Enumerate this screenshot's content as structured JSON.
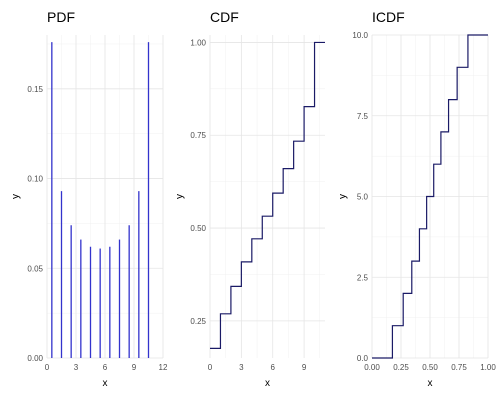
{
  "chart_data": [
    {
      "type": "line",
      "subtype": "spike",
      "title": "PDF",
      "xlabel": "x",
      "ylabel": "y",
      "xlim": [
        0,
        12
      ],
      "ylim": [
        0,
        0.18
      ],
      "xticks": [
        0,
        3,
        6,
        9,
        12
      ],
      "xtick_labels": [
        "0",
        "3",
        "6",
        "9",
        "12"
      ],
      "yticks": [
        0,
        0.05,
        0.1,
        0.15
      ],
      "ytick_labels": [
        "0.00",
        "0.05",
        "0.10",
        "0.15"
      ],
      "grid": true,
      "line_color": "#3333cc",
      "x": [
        0.5,
        1.5,
        2.5,
        3.5,
        4.5,
        5.5,
        6.5,
        7.5,
        8.5,
        9.5,
        10.5
      ],
      "y": [
        0.176,
        0.093,
        0.074,
        0.066,
        0.062,
        0.061,
        0.062,
        0.066,
        0.074,
        0.093,
        0.176
      ]
    },
    {
      "type": "line",
      "subtype": "step",
      "title": "CDF",
      "xlabel": "x",
      "ylabel": "y",
      "xlim": [
        0,
        11
      ],
      "ylim": [
        0.15,
        1.02
      ],
      "xticks": [
        0,
        3,
        6,
        9
      ],
      "xtick_labels": [
        "0",
        "3",
        "6",
        "9"
      ],
      "yticks": [
        0.25,
        0.5,
        0.75,
        1.0
      ],
      "ytick_labels": [
        "0.25",
        "0.50",
        "0.75",
        "1.00"
      ],
      "grid": true,
      "line_color": "#1a1a66",
      "x": [
        0,
        1,
        2,
        3,
        4,
        5,
        6,
        7,
        8,
        9,
        10,
        11
      ],
      "y": [
        0.176,
        0.269,
        0.343,
        0.409,
        0.471,
        0.532,
        0.594,
        0.66,
        0.734,
        0.827,
        1.0,
        1.0
      ]
    },
    {
      "type": "line",
      "subtype": "step",
      "title": "ICDF",
      "xlabel": "x",
      "ylabel": "y",
      "xlim": [
        0,
        1
      ],
      "ylim": [
        0,
        10
      ],
      "xticks": [
        0,
        0.25,
        0.5,
        0.75,
        1.0
      ],
      "xtick_labels": [
        "0.00",
        "0.25",
        "0.50",
        "0.75",
        "1.00"
      ],
      "yticks": [
        0,
        2.5,
        5,
        7.5,
        10
      ],
      "ytick_labels": [
        "0.0",
        "2.5",
        "5.0",
        "7.5",
        "10.0"
      ],
      "grid": true,
      "line_color": "#1a1a66",
      "x": [
        0,
        0.176,
        0.269,
        0.343,
        0.409,
        0.471,
        0.532,
        0.594,
        0.66,
        0.734,
        0.827,
        1.0
      ],
      "y": [
        0,
        1,
        2,
        3,
        4,
        5,
        6,
        7,
        8,
        9,
        10,
        10
      ]
    }
  ]
}
